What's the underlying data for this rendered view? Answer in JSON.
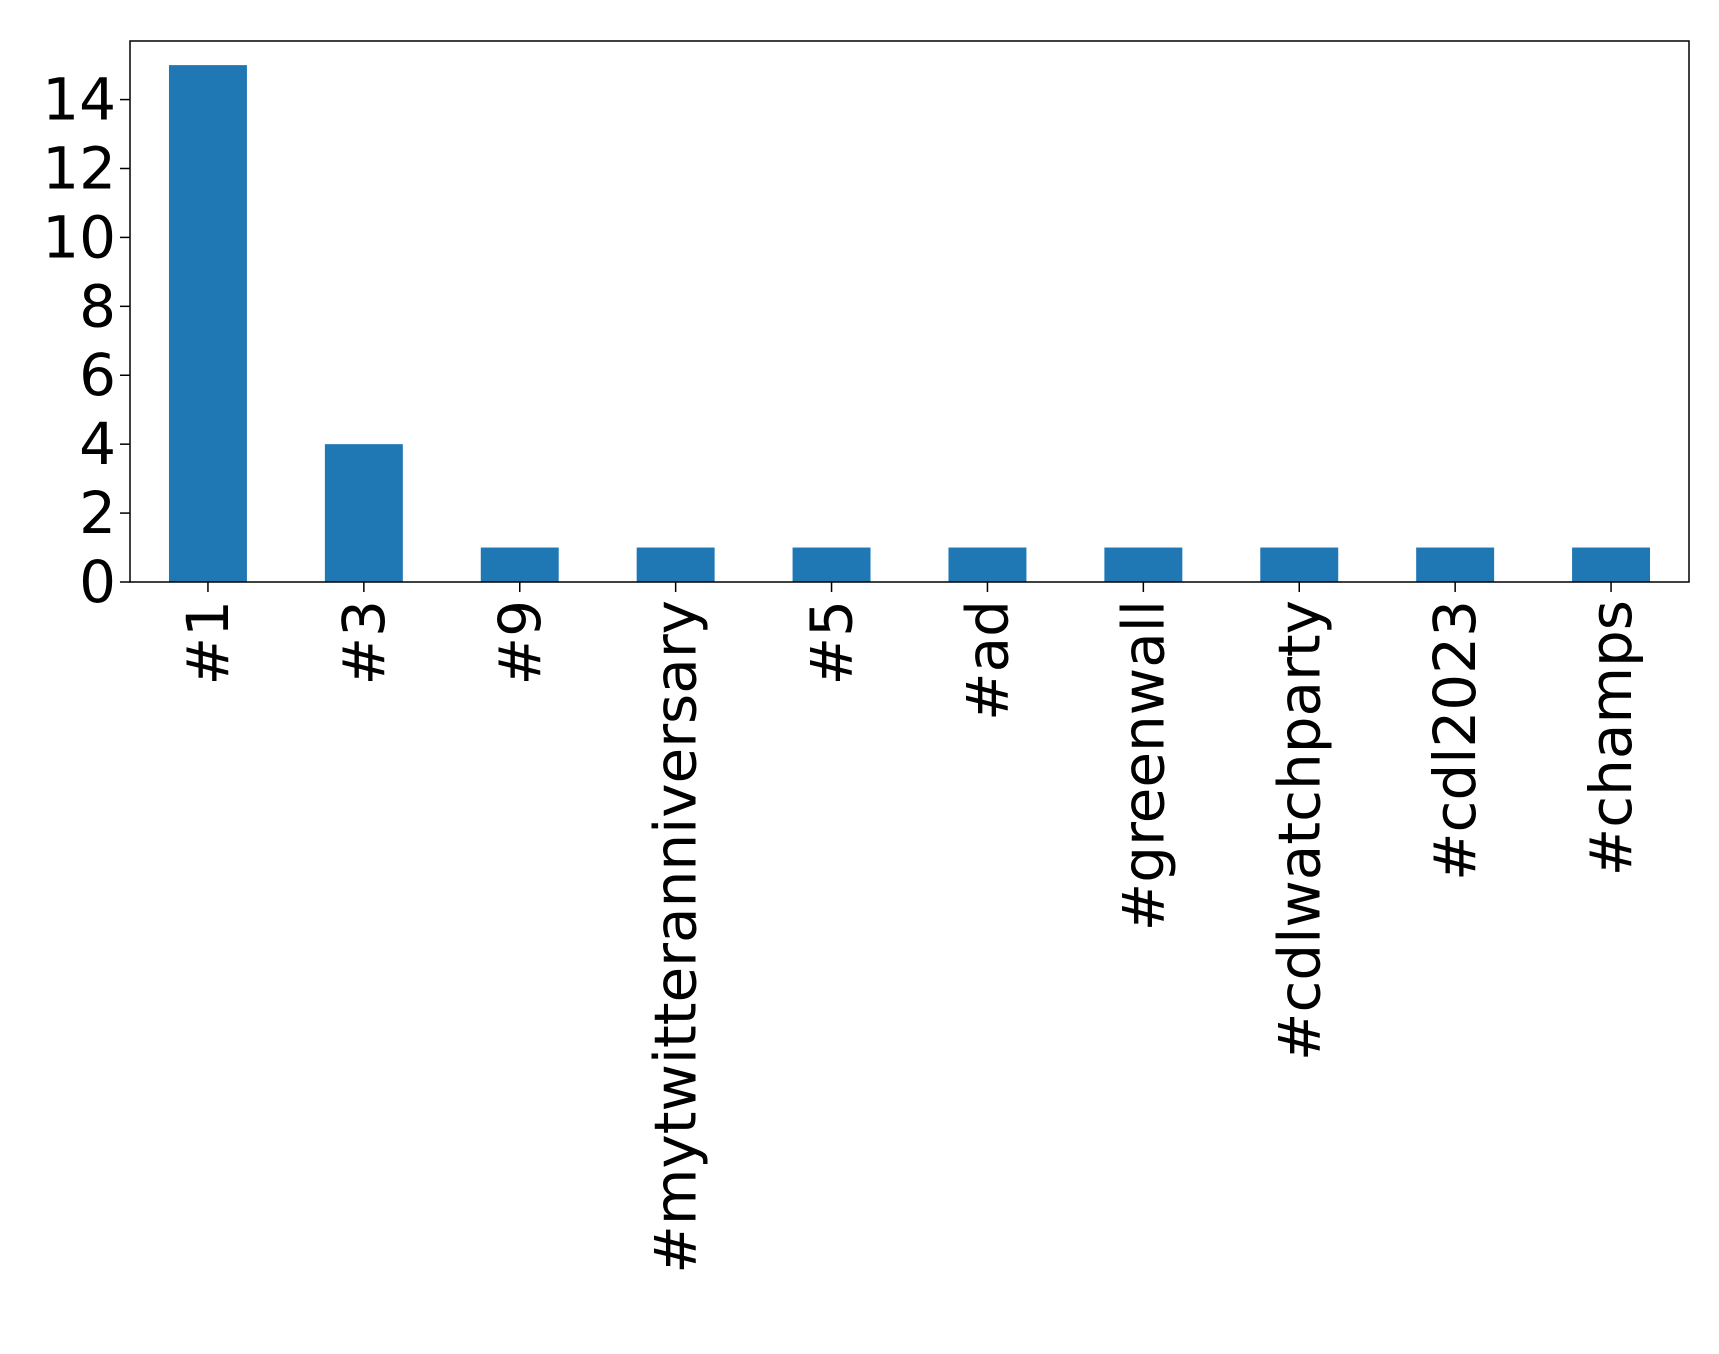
{
  "chart_data": {
    "type": "bar",
    "title": "",
    "xlabel": "",
    "ylabel": "",
    "categories": [
      "#1",
      "#3",
      "#9",
      "#mytwitteranniversary",
      "#5",
      "#ad",
      "#greenwall",
      "#cdlwatchparty",
      "#cdl2023",
      "#champs"
    ],
    "values": [
      15,
      4,
      1,
      1,
      1,
      1,
      1,
      1,
      1,
      1
    ],
    "ylim": [
      0,
      15.7
    ],
    "yticks": [
      0,
      2,
      4,
      6,
      8,
      10,
      12,
      14
    ],
    "ytick_labels": [
      "0",
      "2",
      "4",
      "6",
      "8",
      "10",
      "12",
      "14"
    ],
    "grid": false,
    "legend": false,
    "bar_color": "#1f77b4",
    "x_tick_rotation": "vertical"
  }
}
